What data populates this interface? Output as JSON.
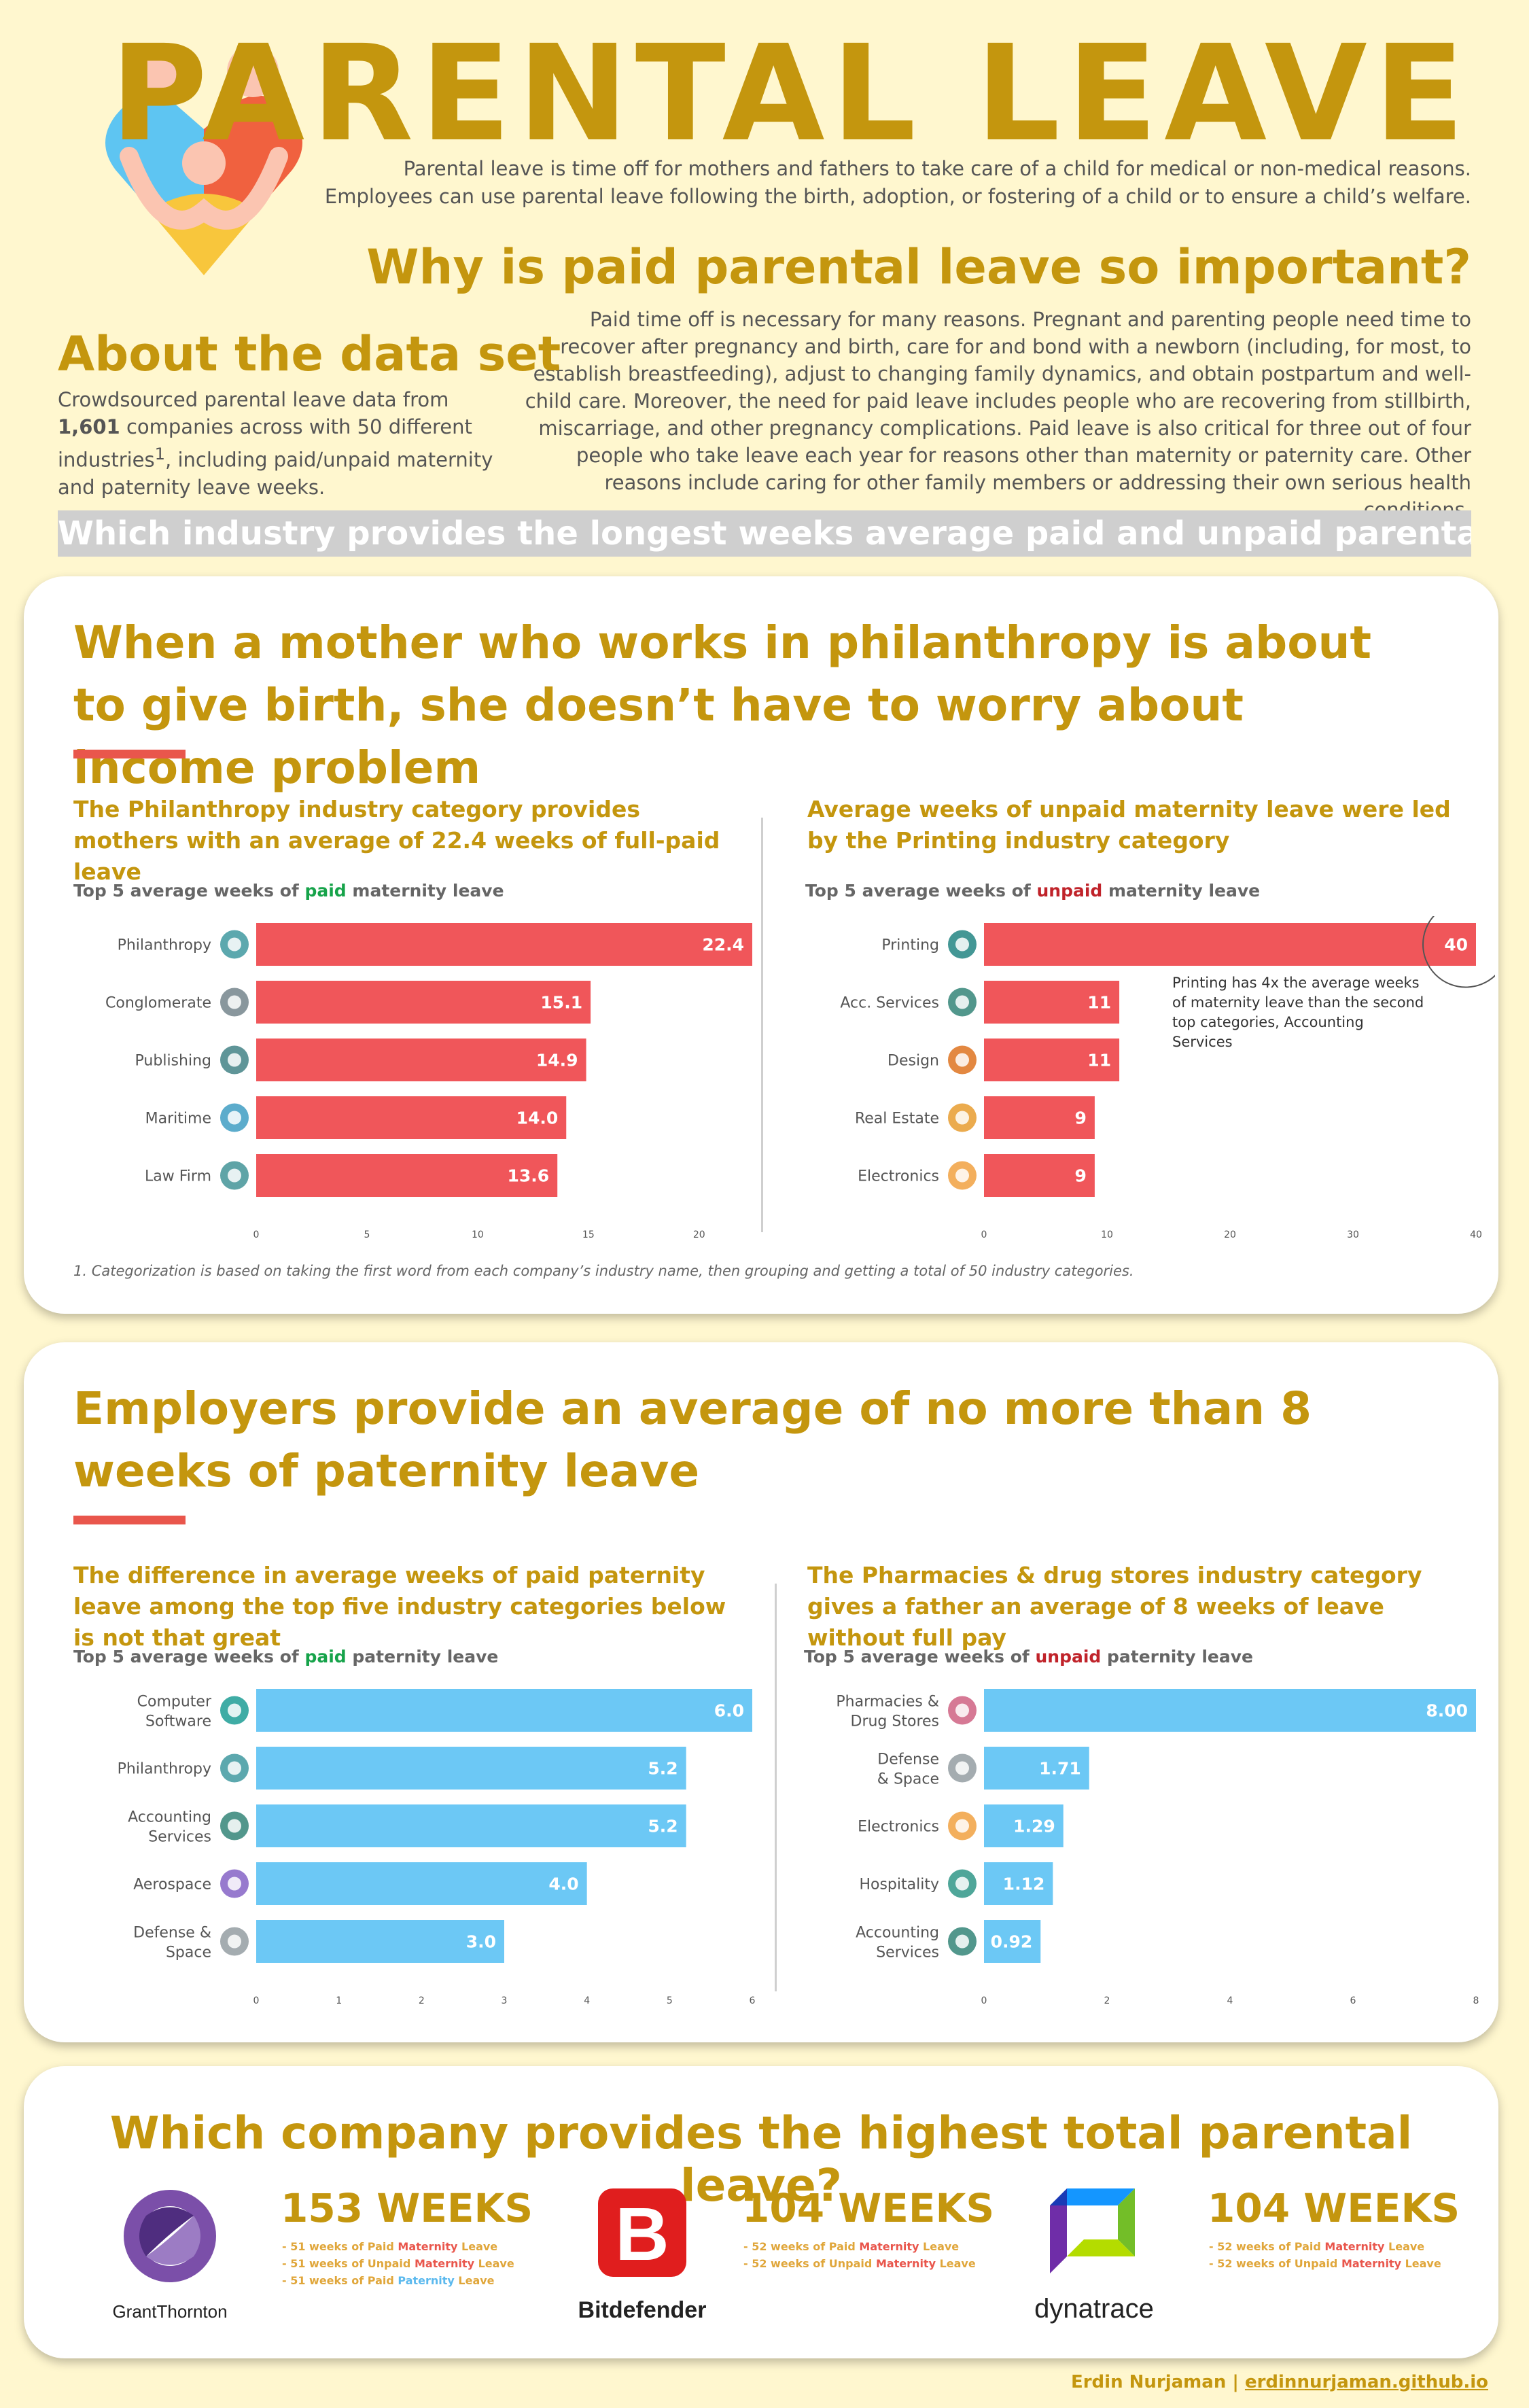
{
  "header": {
    "title": "PARENTAL LEAVE",
    "intro": "Parental leave is time off for mothers and fathers to take care of a child for medical or non-medical reasons. Employees can use parental leave following the birth, adoption, or fostering of a child or to ensure a child’s welfare.",
    "why_title": "Why is paid parental leave so important?",
    "why_text": "Paid time off is necessary for many reasons. Pregnant and parenting people need time to recover after pregnancy and birth, care for and bond with a newborn (including, for most, to establish breastfeeding), adjust to changing family dynamics, and obtain postpartum and well-child care. Moreover, the need for paid leave includes people who are recovering from stillbirth, miscarriage, and other pregnancy complications. Paid leave is also critical for three out of four people who take leave each year for reasons other than maternity or paternity care. Other reasons include caring for other family members or addressing their own serious health conditions.",
    "about_title": "About the data set",
    "about_text_1": "Crowdsourced parental leave data from ",
    "about_bold": "1,601",
    "about_text_2": " companies across with 50 different industries",
    "about_sup": "1",
    "about_text_3": ", including paid/unpaid maternity and paternity leave weeks.",
    "question": "Which industry provides the longest weeks average paid and unpaid parental leave?"
  },
  "card1": {
    "title": "When a mother who works in philanthropy is about to give birth, she doesn’t have to worry about income problem",
    "left_subtitle": "The Philanthropy industry category provides mothers with an average of 22.4 weeks of full-paid leave",
    "right_subtitle": "Average weeks of unpaid maternity leave were led by the Printing industry category",
    "left_label_pre": "Top 5 average weeks of ",
    "left_label_key": "paid",
    "left_label_post": " maternity leave",
    "right_label_pre": "Top 5 average weeks of ",
    "right_label_key": "unpaid",
    "right_label_post": " maternity leave",
    "annotation": "Printing has 4x the average weeks of maternity leave than the second top categories, Accounting Services",
    "footnote": "1. Categorization is based on taking the first word from each company’s industry name, then grouping and getting a total of 50 industry categories."
  },
  "card2": {
    "title": "Employers provide an average of no more than 8 weeks of paternity leave",
    "left_subtitle": "The difference in average weeks of paid paternity leave among the top five industry categories below is not that great",
    "right_subtitle": "The Pharmacies & drug stores industry category gives a father an average of 8 weeks of leave without full pay",
    "left_label_pre": "Top 5 average weeks of ",
    "left_label_key": "paid",
    "left_label_post": " paternity leave",
    "right_label_pre": "Top 5 average weeks of ",
    "right_label_key": "unpaid",
    "right_label_post": " paternity leave"
  },
  "card3": {
    "title": "Which company provides the highest total parental leave?",
    "companies": [
      {
        "name": "GrantThornton",
        "weeks": "153 WEEKS",
        "lines": [
          {
            "a": "- 51 weeks of Paid ",
            "b": "Maternity",
            "c": " Leave",
            "kind": "mat"
          },
          {
            "a": "- 51 weeks of Unpaid ",
            "b": "Maternity",
            "c": " Leave",
            "kind": "mat"
          },
          {
            "a": "- 51 weeks of Paid ",
            "b": "Paternity",
            "c": " Leave",
            "kind": "pat"
          }
        ]
      },
      {
        "name": "Bitdefender",
        "logo_letter": "B",
        "weeks": "104 WEEKS",
        "lines": [
          {
            "a": "- 52 weeks of Paid ",
            "b": "Maternity",
            "c": " Leave",
            "kind": "mat"
          },
          {
            "a": "- 52 weeks of Unpaid ",
            "b": "Maternity",
            "c": " Leave",
            "kind": "mat"
          }
        ]
      },
      {
        "name": "dynatrace",
        "weeks": "104 WEEKS",
        "lines": [
          {
            "a": "- 52 weeks of Paid ",
            "b": "Maternity",
            "c": " Leave",
            "kind": "mat"
          },
          {
            "a": "- 52 weeks of Unpaid ",
            "b": "Maternity",
            "c": " Leave",
            "kind": "mat"
          }
        ]
      }
    ]
  },
  "author": {
    "name": "Erdin Nurjaman",
    "separator": " | ",
    "site": "erdinnurjaman.github.io"
  },
  "colors": {
    "gold": "#c4960e",
    "red_bar": "#f0565a",
    "blue_bar": "#6cc8f5",
    "paid": "#16a34a",
    "unpaid": "#c0232a"
  },
  "chart_data": [
    {
      "type": "bar",
      "orientation": "horizontal",
      "categories": [
        "Philanthropy",
        "Conglomerate",
        "Publishing",
        "Maritime",
        "Law Firm"
      ],
      "icons": [
        "hand-heart-icon",
        "skull-icon",
        "newspaper-icon",
        "anchor-icon",
        "scales-icon"
      ],
      "values": [
        22.4,
        15.1,
        14.9,
        14.0,
        13.6
      ],
      "labels": [
        "22.4",
        "15.1",
        "14.9",
        "14.0",
        "13.6"
      ],
      "xlim": [
        0,
        22.4
      ],
      "ticks": [
        0,
        5,
        10,
        15,
        20
      ],
      "color": "#f0565a",
      "grid": false
    },
    {
      "type": "bar",
      "orientation": "horizontal",
      "categories": [
        "Printing",
        "Acc. Services",
        "Design",
        "Real Estate",
        "Electronics"
      ],
      "icons": [
        "printer-icon",
        "calculator-icon",
        "monitor-icon",
        "house-icon",
        "mouse-icon"
      ],
      "values": [
        40,
        11,
        11,
        9,
        9
      ],
      "labels": [
        "40",
        "11",
        "11",
        "9",
        "9"
      ],
      "xlim": [
        0,
        40
      ],
      "ticks": [
        0,
        10,
        20,
        30,
        40
      ],
      "color": "#f0565a",
      "grid": false,
      "highlight": 0
    },
    {
      "type": "bar",
      "orientation": "horizontal",
      "categories": [
        "Computer\nSoftware",
        "Philanthropy",
        "Accounting\nServices",
        "Aerospace",
        "Defense &\nSpace"
      ],
      "icons": [
        "code-icon",
        "hand-heart-icon",
        "calculator-icon",
        "rocket-icon",
        "jet-icon"
      ],
      "values": [
        6.0,
        5.2,
        5.2,
        4.0,
        3.0
      ],
      "labels": [
        "6.0",
        "5.2",
        "5.2",
        "4.0",
        "3.0"
      ],
      "xlim": [
        0,
        6
      ],
      "ticks": [
        0,
        1,
        2,
        3,
        4,
        5,
        6
      ],
      "color": "#6cc8f5",
      "grid": false
    },
    {
      "type": "bar",
      "orientation": "horizontal",
      "categories": [
        "Pharmacies &\nDrug Stores",
        "Defense\n& Space",
        "Electronics",
        "Hospitality",
        "Accounting\nServices"
      ],
      "icons": [
        "pills-icon",
        "jet-icon",
        "mouse-icon",
        "waiter-icon",
        "calculator-icon"
      ],
      "values": [
        8.0,
        1.71,
        1.29,
        1.12,
        0.92
      ],
      "labels": [
        "8.00",
        "1.71",
        "1.29",
        "1.12",
        "0.92"
      ],
      "xlim": [
        0,
        8
      ],
      "ticks": [
        0,
        2,
        4,
        6,
        8
      ],
      "color": "#6cc8f5",
      "grid": false
    }
  ]
}
